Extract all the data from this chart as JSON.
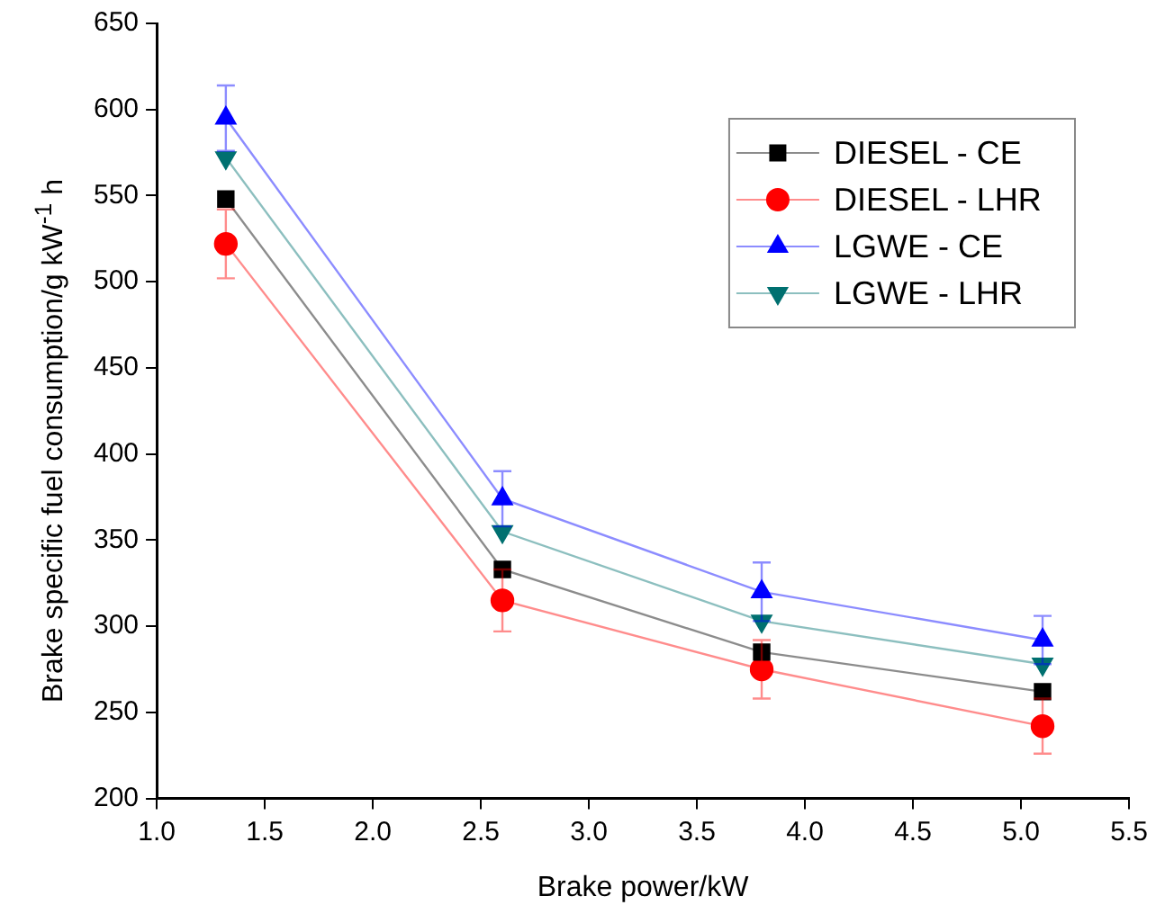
{
  "chart_data": {
    "type": "line",
    "xlabel": "Brake power/kW",
    "ylabel": "Brake specific fuel consumption/g kW$^{-1}$ h",
    "x": [
      1.32,
      2.6,
      3.8,
      5.1
    ],
    "series": [
      {
        "name": "DIESEL - CE",
        "color": "#000000",
        "marker": "square",
        "values": [
          548,
          333,
          285,
          262
        ]
      },
      {
        "name": "DIESEL - LHR",
        "color": "#ff0000",
        "marker": "circle",
        "values": [
          522,
          315,
          275,
          242
        ],
        "errors": [
          20,
          18,
          17,
          16
        ]
      },
      {
        "name": "LGWE - CE",
        "color": "#0000ff",
        "marker": "triangle",
        "values": [
          595,
          374,
          320,
          292
        ],
        "errors": [
          19,
          16,
          17,
          14
        ]
      },
      {
        "name": "LGWE - LHR",
        "color": "#007070",
        "marker": "triangle-down",
        "values": [
          572,
          355,
          303,
          278
        ]
      }
    ],
    "xlim": [
      1.0,
      5.5
    ],
    "xticks": [
      {
        "value": 1,
        "label": "1.0"
      },
      1.5,
      {
        "value": 2,
        "label": "2.0"
      },
      2.5,
      {
        "value": 3,
        "label": "3.0"
      },
      3.5,
      {
        "value": 4,
        "label": "4.0"
      },
      4.5,
      {
        "value": 5,
        "label": "5.0"
      },
      5.5
    ],
    "ylim": [
      200,
      650
    ],
    "yticks": [
      200,
      250,
      300,
      350,
      400,
      450,
      500,
      550,
      600,
      650
    ],
    "grid": false,
    "legend": "top right",
    "line_style": "solid"
  }
}
